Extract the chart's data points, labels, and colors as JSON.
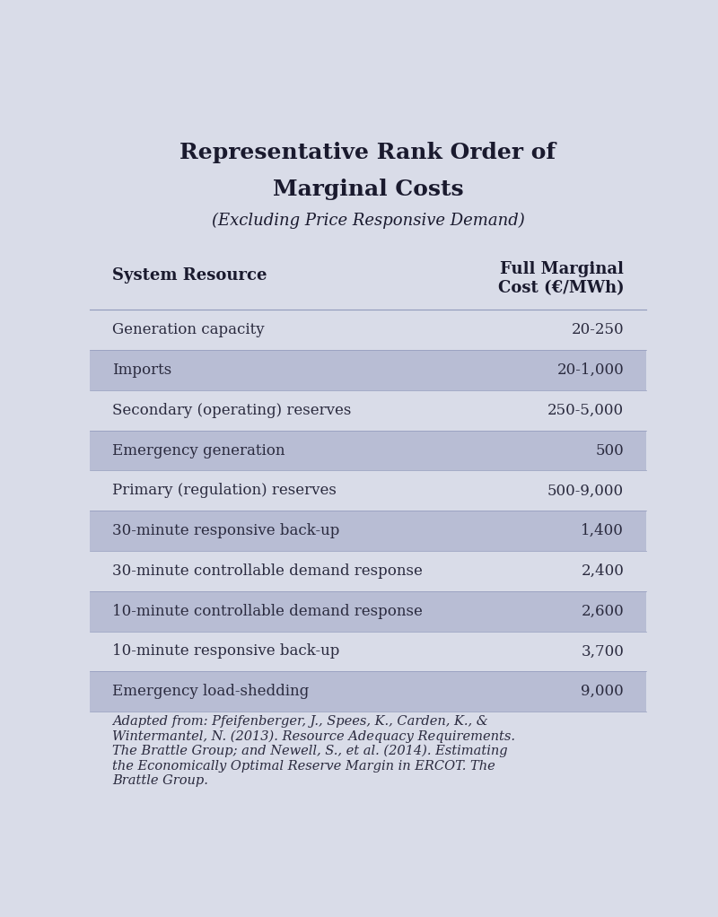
{
  "title_line1": "Representative Rank Order of",
  "title_line2": "Marginal Costs",
  "subtitle": "(Excluding Price Responsive Demand)",
  "col1_header": "System Resource",
  "col2_header": "Full Marginal\nCost (€/MWh)",
  "rows": [
    {
      "resource": "Generation capacity",
      "cost": "20-250",
      "shade": false
    },
    {
      "resource": "Imports",
      "cost": "20-1,000",
      "shade": true
    },
    {
      "resource": "Secondary (operating) reserves",
      "cost": "250-5,000",
      "shade": false
    },
    {
      "resource": "Emergency generation",
      "cost": "500",
      "shade": true
    },
    {
      "resource": "Primary (regulation) reserves",
      "cost": "500-9,000",
      "shade": false
    },
    {
      "resource": "30-minute responsive back-up",
      "cost": "1,400",
      "shade": true
    },
    {
      "resource": "30-minute controllable demand response",
      "cost": "2,400",
      "shade": false
    },
    {
      "resource": "10-minute controllable demand response",
      "cost": "2,600",
      "shade": true
    },
    {
      "resource": "10-minute responsive back-up",
      "cost": "3,700",
      "shade": false
    },
    {
      "resource": "Emergency load-shedding",
      "cost": "9,000",
      "shade": true
    }
  ],
  "footnote": "Adapted from: Pfeifenberger, J., Spees, K., Carden, K., &\nWintermantel, N. (2013). Resource Adequacy Requirements.\nThe Brattle Group; and Newell, S., et al. (2014). Estimating\nthe Economically Optimal Reserve Margin in ERCOT. The\nBrattle Group.",
  "bg_color": "#d9dce8",
  "shade_color": "#b8bdd4",
  "no_shade_color": "#d9dce8",
  "header_bg_color": "#d9dce8",
  "title_color": "#1a1a2e",
  "text_color": "#2a2a3e",
  "header_text_color": "#1a1a2e",
  "line_color": "#9099bb"
}
